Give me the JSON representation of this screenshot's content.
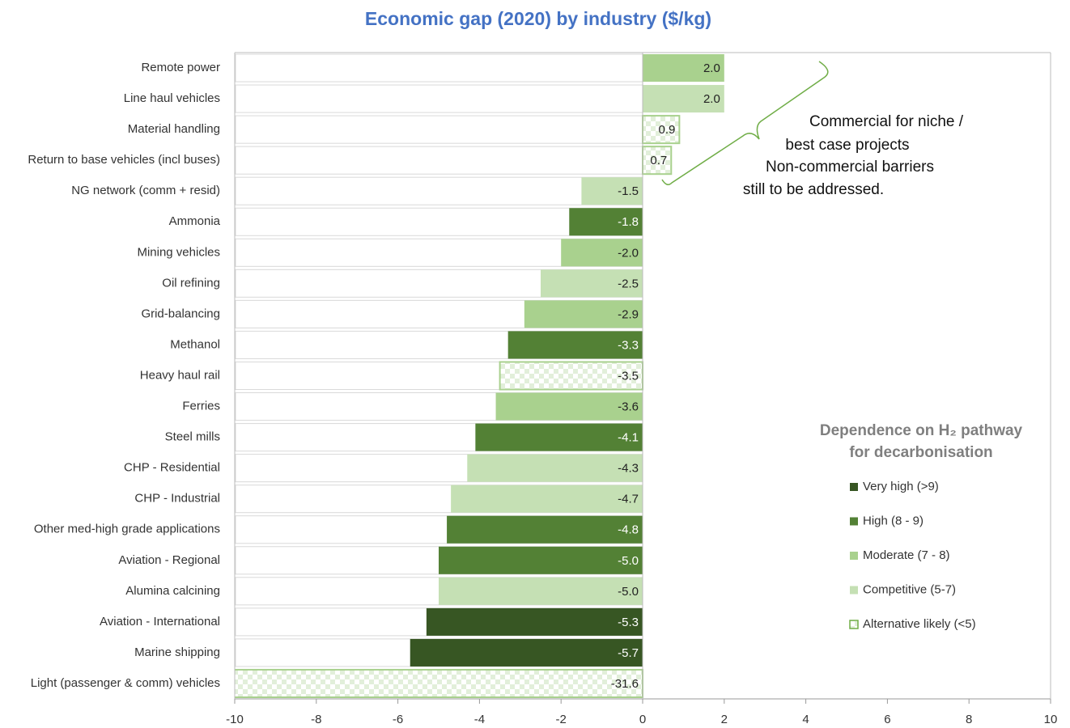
{
  "chart_data": {
    "type": "bar",
    "orientation": "horizontal",
    "title": "Economic gap (2020) by industry ($/kg)",
    "categories": [
      "Remote power",
      "Line haul vehicles",
      "Material handling",
      "Return to base vehicles (incl buses)",
      "NG network (comm + resid)",
      "Ammonia",
      "Mining vehicles",
      "Oil refining",
      "Grid-balancing",
      "Methanol",
      "Heavy haul rail",
      "Ferries",
      "Steel mills",
      "CHP - Residential",
      "CHP - Industrial",
      "Other med-high grade applications",
      "Aviation - Regional",
      "Alumina calcining",
      "Aviation - International",
      "Marine shipping",
      "Light (passenger & comm) vehicles"
    ],
    "values": [
      2.0,
      2.0,
      0.9,
      0.7,
      -1.5,
      -1.8,
      -2.0,
      -2.5,
      -2.9,
      -3.3,
      -3.5,
      -3.6,
      -4.1,
      -4.3,
      -4.7,
      -4.8,
      -5.0,
      -5.0,
      -5.3,
      -5.7,
      -31.6
    ],
    "value_labels": [
      "2.0",
      "2.0",
      "0.9",
      "0.7",
      "-1.5",
      "-1.8",
      "-2.0",
      "-2.5",
      "-2.9",
      "-3.3",
      "-3.5",
      "-3.6",
      "-4.1",
      "-4.3",
      "-4.7",
      "-4.8",
      "-5.0",
      "-5.0",
      "-5.3",
      "-5.7",
      "-31.6"
    ],
    "colors": [
      "#a9d18e",
      "#c5e0b4",
      "checker",
      "checker",
      "#c5e0b4",
      "#538135",
      "#a9d18e",
      "#c5e0b4",
      "#a9d18e",
      "#538135",
      "checker",
      "#a9d18e",
      "#538135",
      "#c5e0b4",
      "#c5e0b4",
      "#538135",
      "#538135",
      "#c5e0b4",
      "#375623",
      "#375623",
      "checker"
    ],
    "xlim": [
      -10,
      10
    ],
    "xticks": [
      -10,
      -8,
      -6,
      -4,
      -2,
      0,
      2,
      4,
      6,
      8,
      10
    ],
    "legend_title": [
      "Dependence on H₂ pathway",
      "for decarbonisation"
    ],
    "legend": [
      {
        "name": "Very high (>9)",
        "color": "#375623"
      },
      {
        "name": "High (8 - 9)",
        "color": "#538135"
      },
      {
        "name": "Moderate (7 - 8)",
        "color": "#a9d18e"
      },
      {
        "name": "Competitive (5-7)",
        "color": "#c5e0b4"
      },
      {
        "name": "Alternative likely (<5)",
        "color": "checker"
      }
    ],
    "annotations": [
      {
        "lines": [
          "Commercial for niche /",
          "best case projects"
        ]
      },
      {
        "lines": [
          "Non-commercial barriers",
          "still to be addressed."
        ]
      }
    ]
  }
}
